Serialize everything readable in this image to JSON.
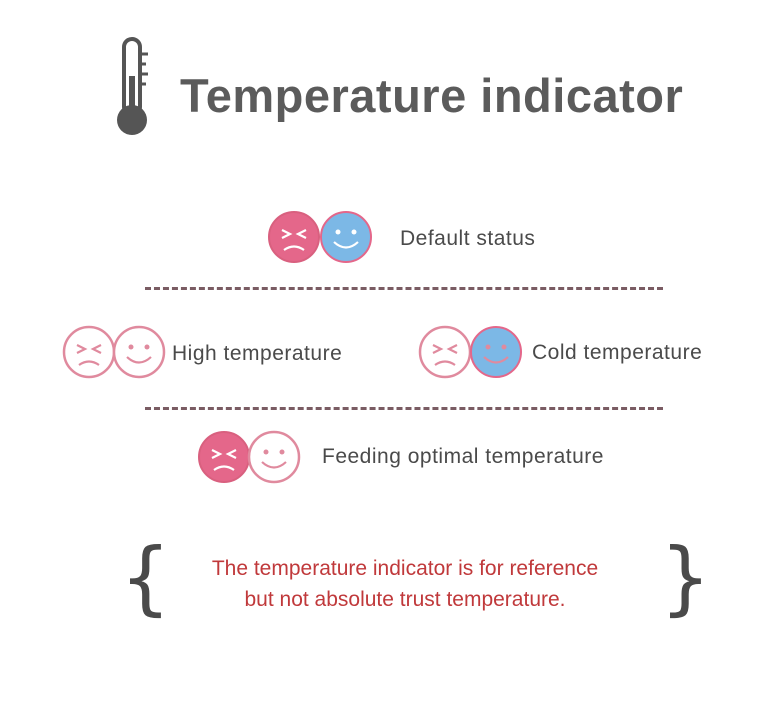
{
  "header": {
    "title": "Temperature indicator",
    "icon": "thermometer-icon"
  },
  "states": [
    {
      "label": "Default status",
      "left_face": "sad-face-icon",
      "left_style": "filled-pink",
      "right_face": "smile-face-icon",
      "right_style": "filled-blue"
    },
    {
      "label": "High temperature",
      "left_face": "sad-face-icon",
      "left_style": "outline-pink",
      "right_face": "smile-face-icon",
      "right_style": "outline-pink"
    },
    {
      "label": "Cold temperature",
      "left_face": "sad-face-icon",
      "left_style": "outline-pink",
      "right_face": "smile-face-icon",
      "right_style": "filled-blue"
    },
    {
      "label": "Feeding optimal temperature",
      "left_face": "sad-face-icon",
      "left_style": "filled-pink",
      "right_face": "smile-face-icon",
      "right_style": "outline-pink"
    }
  ],
  "note": {
    "line1": "The temperature indicator is for reference",
    "line2": "but not absolute trust temperature."
  },
  "colors": {
    "pink": "#e4678a",
    "pink_outline": "#e08a9e",
    "blue": "#7cb8e6",
    "title": "#5b5b5b",
    "note": "#c0393b",
    "divider": "#7a5c63"
  }
}
